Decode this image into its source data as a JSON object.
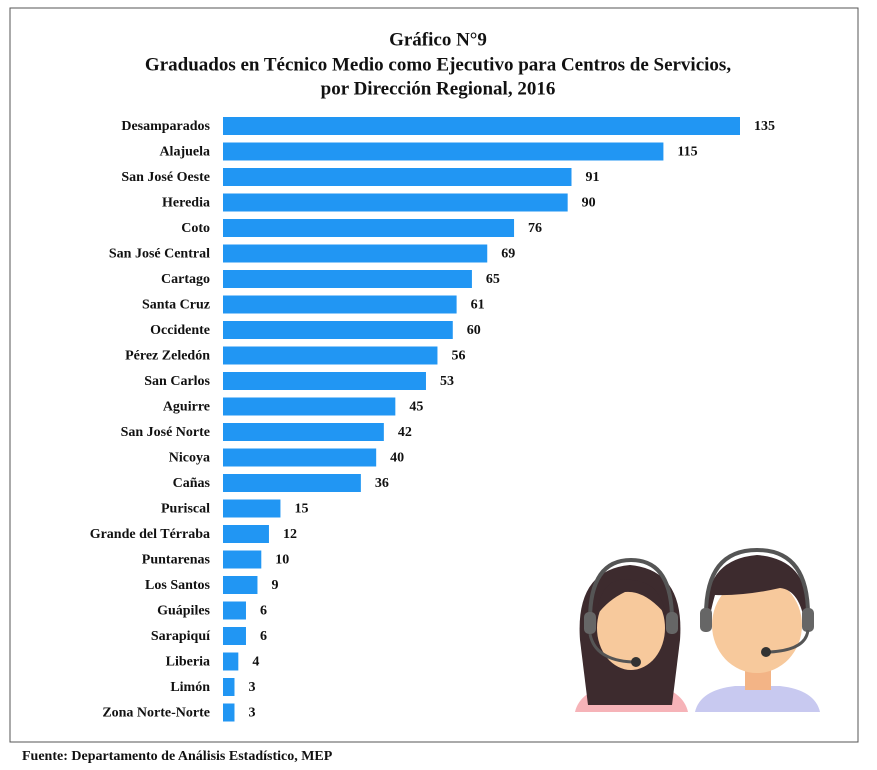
{
  "chart_data": {
    "type": "bar",
    "orientation": "horizontal",
    "title": "Gráfico N°9",
    "subtitle": [
      "Graduados en Técnico Medio como Ejecutivo para Centros de Servicios,",
      "por Dirección Regional, 2016"
    ],
    "categories": [
      "Desamparados",
      "Alajuela",
      "San José Oeste",
      "Heredia",
      "Coto",
      "San José Central",
      "Cartago",
      "Santa Cruz",
      "Occidente",
      "Pérez Zeledón",
      "San Carlos",
      "Aguirre",
      "San José Norte",
      "Nicoya",
      "Cañas",
      "Puriscal",
      "Grande del Térraba",
      "Puntarenas",
      "Los Santos",
      "Guápiles",
      "Sarapiquí",
      "Liberia",
      "Limón",
      "Zona Norte-Norte"
    ],
    "values": [
      135,
      115,
      91,
      90,
      76,
      69,
      65,
      61,
      60,
      56,
      53,
      45,
      42,
      40,
      36,
      15,
      12,
      10,
      9,
      6,
      6,
      4,
      3,
      3
    ],
    "color": "#2196f3",
    "source": "Fuente: Departamento de Análisis Estadístico, MEP"
  }
}
